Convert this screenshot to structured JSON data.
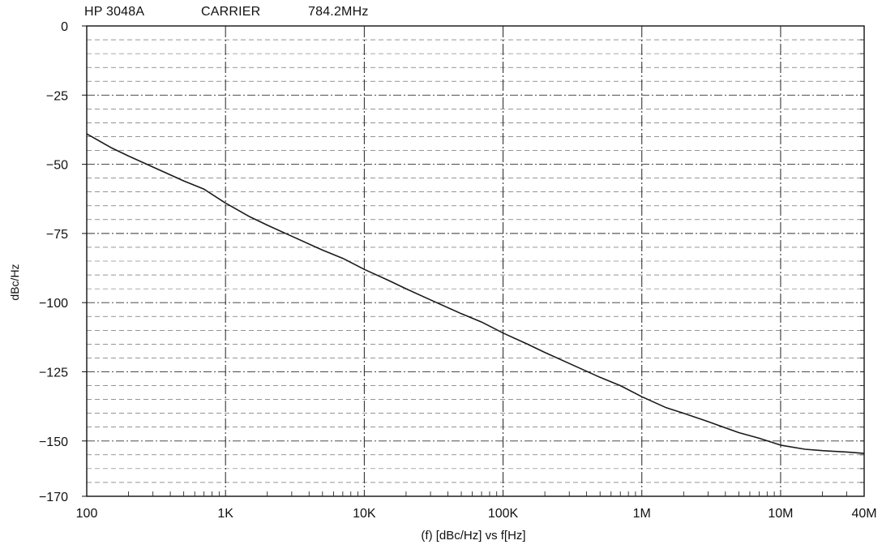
{
  "header": {
    "instrument": "HP 3048A",
    "carrier_label": "CARRIER",
    "carrier_freq": "784.2MHz"
  },
  "chart_data": {
    "type": "line",
    "title": "",
    "xlabel": "(f) [dBc/Hz] vs f[Hz]",
    "ylabel": "dBc/Hz",
    "x_scale": "log",
    "xlim": [
      100,
      40000000
    ],
    "ylim": [
      -170,
      0
    ],
    "x_tick_values": [
      100,
      1000,
      10000,
      100000,
      1000000,
      10000000,
      40000000
    ],
    "x_tick_labels": [
      "100",
      "1K",
      "10K",
      "100K",
      "1M",
      "10M",
      "40M"
    ],
    "y_tick_values": [
      0,
      -25,
      -50,
      -75,
      -100,
      -125,
      -150,
      -170
    ],
    "y_tick_labels": [
      "0",
      "−25",
      "−50",
      "−75",
      "−100",
      "−125",
      "−150",
      "−170"
    ],
    "grid": true,
    "series": [
      {
        "color": "#1a1a1a",
        "x": [
          100,
          150,
          200,
          300,
          500,
          700,
          1000,
          1500,
          2000,
          3000,
          5000,
          7000,
          10000,
          15000,
          20000,
          30000,
          50000,
          70000,
          100000,
          150000,
          200000,
          300000,
          500000,
          700000,
          1000000,
          1500000,
          2000000,
          3000000,
          5000000,
          7000000,
          10000000,
          15000000,
          20000000,
          30000000,
          40000000
        ],
        "y": [
          -39,
          -44,
          -47,
          -51,
          -56,
          -59,
          -64,
          -69,
          -72,
          -76,
          -81,
          -84,
          -88,
          -92,
          -95,
          -99,
          -104,
          -107,
          -111,
          -115,
          -118,
          -122,
          -127,
          -130,
          -134,
          -138,
          -140,
          -143,
          -147,
          -149,
          -151.5,
          -153,
          -153.5,
          -154,
          -154.5
        ]
      }
    ]
  }
}
